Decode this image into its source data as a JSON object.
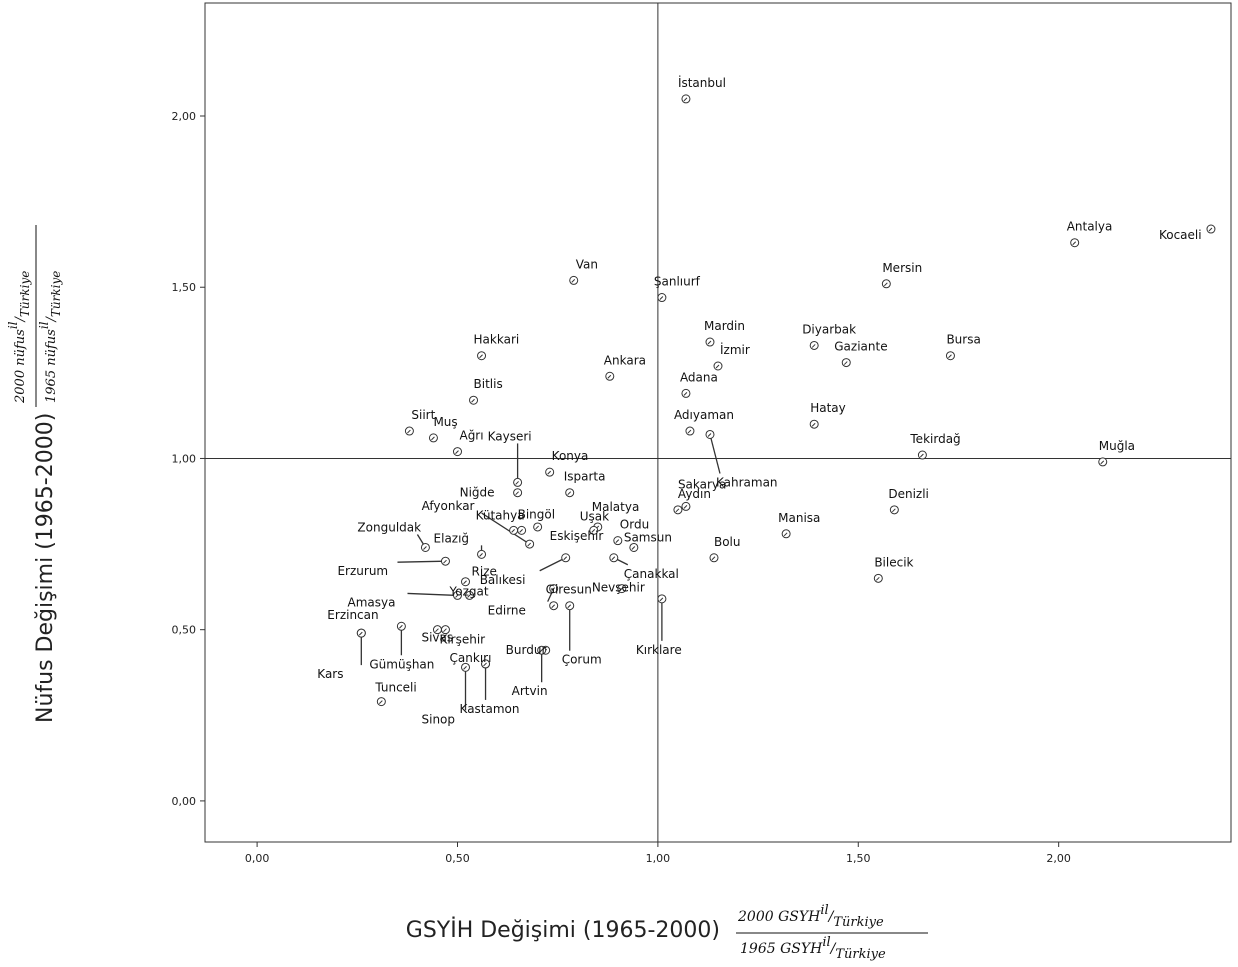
{
  "chart_data": {
    "type": "scatter",
    "xlabel": "GSYİH Değişimi (1965-2000)",
    "ylabel": "Nüfus Değişimi (1965-2000)",
    "x_formula": {
      "num_prefix": "2000 ",
      "num_var": "GSYH",
      "den_prefix": "1965 ",
      "den_var": "GSYH",
      "sup": "il",
      "sub": "Türkiye"
    },
    "y_formula": {
      "num_prefix": "2000 ",
      "num_var": "nüfus",
      "den_prefix": "1965 ",
      "den_var": "nüfus",
      "sup": "il",
      "sub": "Türkiye"
    },
    "xlim": [
      -0.13,
      2.43
    ],
    "ylim": [
      -0.12,
      2.33
    ],
    "x_ticks": [
      "0,00",
      "0,50",
      "1,00",
      "1,50",
      "2,00"
    ],
    "x_tick_values": [
      0,
      0.5,
      1,
      1.5,
      2
    ],
    "y_ticks": [
      "0,00",
      "0,50",
      "1,00",
      "1,50",
      "2,00"
    ],
    "y_tick_values": [
      0,
      0.5,
      1,
      1.5,
      2
    ],
    "reference_lines": {
      "x": 1.0,
      "y": 1.0
    },
    "grid": false,
    "points": [
      {
        "name": "İstanbul",
        "x": 1.07,
        "y": 2.05
      },
      {
        "name": "Kocaeli",
        "x": 2.38,
        "y": 1.67
      },
      {
        "name": "Antalya",
        "x": 2.04,
        "y": 1.63
      },
      {
        "name": "Van",
        "x": 0.79,
        "y": 1.52
      },
      {
        "name": "Mersin",
        "x": 1.57,
        "y": 1.51
      },
      {
        "name": "Şanlıurf",
        "x": 1.01,
        "y": 1.47
      },
      {
        "name": "Mardin",
        "x": 1.13,
        "y": 1.34
      },
      {
        "name": "Diyarbak",
        "x": 1.39,
        "y": 1.33
      },
      {
        "name": "Hakkari",
        "x": 0.56,
        "y": 1.3
      },
      {
        "name": "Bursa",
        "x": 1.73,
        "y": 1.3
      },
      {
        "name": "Gaziante",
        "x": 1.47,
        "y": 1.28
      },
      {
        "name": "İzmir",
        "x": 1.15,
        "y": 1.27
      },
      {
        "name": "Ankara",
        "x": 0.88,
        "y": 1.24
      },
      {
        "name": "Adana",
        "x": 1.07,
        "y": 1.19
      },
      {
        "name": "Bitlis",
        "x": 0.54,
        "y": 1.17
      },
      {
        "name": "Hatay",
        "x": 1.39,
        "y": 1.1
      },
      {
        "name": "Siirt",
        "x": 0.38,
        "y": 1.08
      },
      {
        "name": "Adıyaman",
        "x": 1.08,
        "y": 1.08
      },
      {
        "name": "Kahraman",
        "x": 1.13,
        "y": 1.07
      },
      {
        "name": "Muş",
        "x": 0.44,
        "y": 1.06
      },
      {
        "name": "Ağrı",
        "x": 0.5,
        "y": 1.02
      },
      {
        "name": "Tekirdağ",
        "x": 1.66,
        "y": 1.01
      },
      {
        "name": "Muğla",
        "x": 2.11,
        "y": 0.99
      },
      {
        "name": "Kayseri",
        "x": 0.65,
        "y": 0.93
      },
      {
        "name": "Konya",
        "x": 0.73,
        "y": 0.96
      },
      {
        "name": "Niğde",
        "x": 0.65,
        "y": 0.9
      },
      {
        "name": "Isparta",
        "x": 0.78,
        "y": 0.9
      },
      {
        "name": "Denizli",
        "x": 1.59,
        "y": 0.85
      },
      {
        "name": "Aydın",
        "x": 1.05,
        "y": 0.85
      },
      {
        "name": "Sakarya",
        "x": 1.07,
        "y": 0.86
      },
      {
        "name": "Manisa",
        "x": 1.32,
        "y": 0.78
      },
      {
        "name": "Malatya",
        "x": 0.85,
        "y": 0.8
      },
      {
        "name": "Uşak",
        "x": 0.84,
        "y": 0.79
      },
      {
        "name": "Bingöl",
        "x": 0.66,
        "y": 0.79
      },
      {
        "name": "Kütahya",
        "x": 0.64,
        "y": 0.79
      },
      {
        "name": "Afyonkar",
        "x": 0.68,
        "y": 0.75
      },
      {
        "name": "Eskişehir",
        "x": 0.7,
        "y": 0.8
      },
      {
        "name": "Ordu",
        "x": 0.9,
        "y": 0.76
      },
      {
        "name": "Samsun",
        "x": 0.94,
        "y": 0.74
      },
      {
        "name": "Zonguldak",
        "x": 0.42,
        "y": 0.74
      },
      {
        "name": "Elazığ",
        "x": 0.56,
        "y": 0.72
      },
      {
        "name": "Bolu",
        "x": 1.14,
        "y": 0.71
      },
      {
        "name": "Erzurum",
        "x": 0.47,
        "y": 0.7
      },
      {
        "name": "Yozgat",
        "x": 0.52,
        "y": 0.64
      },
      {
        "name": "Balıkesi",
        "x": 0.77,
        "y": 0.71
      },
      {
        "name": "Çanakkal",
        "x": 0.89,
        "y": 0.71
      },
      {
        "name": "Nevşehir",
        "x": 0.91,
        "y": 0.62
      },
      {
        "name": "Bilecik",
        "x": 1.55,
        "y": 0.65
      },
      {
        "name": "Rize",
        "x": 0.53,
        "y": 0.6
      },
      {
        "name": "Kırklare",
        "x": 1.01,
        "y": 0.59
      },
      {
        "name": "Amasya",
        "x": 0.5,
        "y": 0.6
      },
      {
        "name": "Giresun",
        "x": 0.74,
        "y": 0.57
      },
      {
        "name": "Çorum",
        "x": 0.78,
        "y": 0.57
      },
      {
        "name": "Edirne",
        "x": 0.74,
        "y": 0.62
      },
      {
        "name": "Erzincan",
        "x": 0.26,
        "y": 0.49
      },
      {
        "name": "Gümüşhan",
        "x": 0.36,
        "y": 0.51
      },
      {
        "name": "Sivas",
        "x": 0.45,
        "y": 0.5
      },
      {
        "name": "Kırşehir",
        "x": 0.47,
        "y": 0.5
      },
      {
        "name": "Burdur",
        "x": 0.72,
        "y": 0.44
      },
      {
        "name": "Çankırı",
        "x": 0.57,
        "y": 0.4
      },
      {
        "name": "Sinop",
        "x": 0.52,
        "y": 0.39
      },
      {
        "name": "Kastamon",
        "x": 0.57,
        "y": 0.4
      },
      {
        "name": "Artvin",
        "x": 0.71,
        "y": 0.44
      },
      {
        "name": "Kars",
        "x": 0.26,
        "y": 0.49
      },
      {
        "name": "Tunceli",
        "x": 0.31,
        "y": 0.29
      }
    ]
  }
}
